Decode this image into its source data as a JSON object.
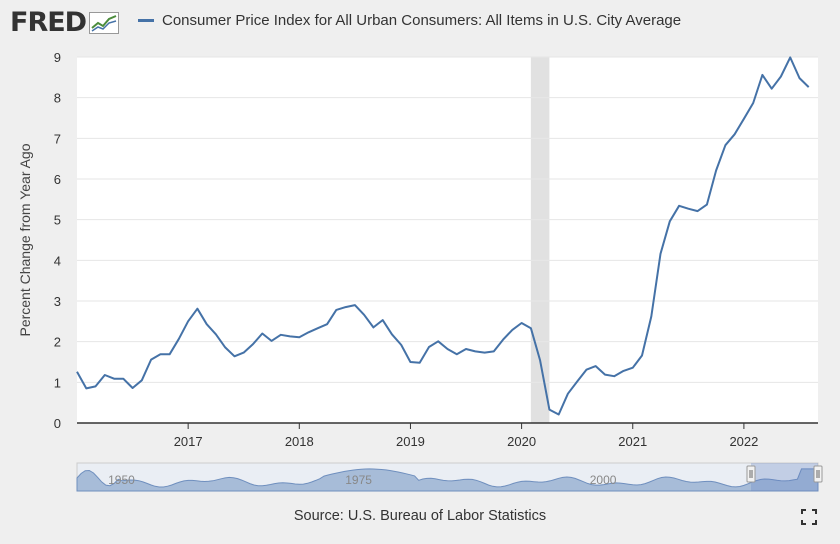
{
  "header": {
    "logo_text": "FRED",
    "legend_label": "Consumer Price Index for All Urban Consumers: All Items in U.S. City Average"
  },
  "source_text": "Source: U.S. Bureau of Labor Statistics",
  "colors": {
    "series": "#4572a7",
    "background": "#efefef",
    "plot_bg": "#ffffff",
    "recession": "#e1e1e1"
  },
  "icons": {
    "logo": "fred-graph-icon",
    "fullscreen": "fullscreen-icon"
  },
  "chart_data": {
    "type": "line",
    "ylabel": "Percent Change from Year Ago",
    "xlabel": "",
    "ylim": [
      0,
      9
    ],
    "xlim": [
      "2016-01",
      "2022-09"
    ],
    "yticks": [
      0,
      1,
      2,
      3,
      4,
      5,
      6,
      7,
      8,
      9
    ],
    "xticks": [
      "2017",
      "2018",
      "2019",
      "2020",
      "2021",
      "2022"
    ],
    "recession_shading": [
      [
        "2020-02",
        "2020-04"
      ]
    ],
    "series": [
      {
        "name": "Consumer Price Index for All Urban Consumers: All Items in U.S. City Average",
        "x": [
          "2016-01",
          "2016-02",
          "2016-03",
          "2016-04",
          "2016-05",
          "2016-06",
          "2016-07",
          "2016-08",
          "2016-09",
          "2016-10",
          "2016-11",
          "2016-12",
          "2017-01",
          "2017-02",
          "2017-03",
          "2017-04",
          "2017-05",
          "2017-06",
          "2017-07",
          "2017-08",
          "2017-09",
          "2017-10",
          "2017-11",
          "2017-12",
          "2018-01",
          "2018-02",
          "2018-03",
          "2018-04",
          "2018-05",
          "2018-06",
          "2018-07",
          "2018-08",
          "2018-09",
          "2018-10",
          "2018-11",
          "2018-12",
          "2019-01",
          "2019-02",
          "2019-03",
          "2019-04",
          "2019-05",
          "2019-06",
          "2019-07",
          "2019-08",
          "2019-09",
          "2019-10",
          "2019-11",
          "2019-12",
          "2020-01",
          "2020-02",
          "2020-03",
          "2020-04",
          "2020-05",
          "2020-06",
          "2020-07",
          "2020-08",
          "2020-09",
          "2020-10",
          "2020-11",
          "2020-12",
          "2021-01",
          "2021-02",
          "2021-03",
          "2021-04",
          "2021-05",
          "2021-06",
          "2021-07",
          "2021-08",
          "2021-09",
          "2021-10",
          "2021-11",
          "2021-12",
          "2022-01",
          "2022-02",
          "2022-03",
          "2022-04",
          "2022-05",
          "2022-06",
          "2022-07",
          "2022-08"
        ],
        "values": [
          1.26,
          0.85,
          0.9,
          1.18,
          1.09,
          1.09,
          0.86,
          1.05,
          1.56,
          1.69,
          1.69,
          2.07,
          2.5,
          2.81,
          2.43,
          2.18,
          1.86,
          1.64,
          1.73,
          1.94,
          2.2,
          2.02,
          2.17,
          2.13,
          2.11,
          2.23,
          2.33,
          2.43,
          2.78,
          2.85,
          2.9,
          2.66,
          2.35,
          2.53,
          2.18,
          1.92,
          1.5,
          1.48,
          1.87,
          2.01,
          1.82,
          1.69,
          1.82,
          1.76,
          1.73,
          1.76,
          2.05,
          2.29,
          2.46,
          2.33,
          1.54,
          0.33,
          0.21,
          0.72,
          1.02,
          1.31,
          1.4,
          1.19,
          1.15,
          1.28,
          1.36,
          1.66,
          2.62,
          4.16,
          4.96,
          5.34,
          5.27,
          5.21,
          5.37,
          6.21,
          6.83,
          7.1,
          7.48,
          7.87,
          8.56,
          8.22,
          8.52,
          8.99,
          8.48,
          8.26
        ]
      }
    ],
    "navigator": {
      "labels": [
        "1950",
        "1975",
        "2000"
      ]
    }
  }
}
